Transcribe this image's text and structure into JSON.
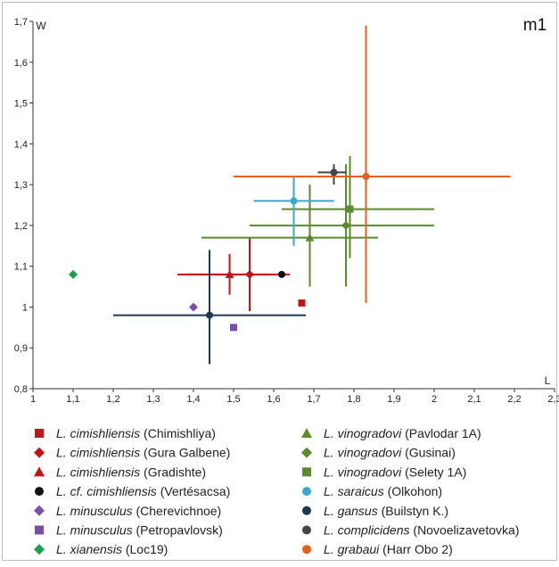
{
  "chart_data": {
    "type": "scatter",
    "panel_label": "m1",
    "xlabel": "L",
    "ylabel": "W",
    "xlim": [
      1,
      2.3
    ],
    "ylim": [
      0.8,
      1.7
    ],
    "x_ticks": [
      "1",
      "1,1",
      "1,2",
      "1,3",
      "1,4",
      "1,5",
      "1,6",
      "1,7",
      "1,8",
      "1,9",
      "2",
      "2,1",
      "2,2",
      "2,3"
    ],
    "x_tick_values": [
      1,
      1.1,
      1.2,
      1.3,
      1.4,
      1.5,
      1.6,
      1.7,
      1.8,
      1.9,
      2,
      2.1,
      2.2,
      2.3
    ],
    "y_ticks": [
      "0,8",
      "0,9",
      "1",
      "1,1",
      "1,2",
      "1,3",
      "1,4",
      "1,5",
      "1,6",
      "1,7"
    ],
    "y_tick_values": [
      0.8,
      0.9,
      1,
      1.1,
      1.2,
      1.3,
      1.4,
      1.5,
      1.6,
      1.7
    ],
    "grid": false,
    "legend_position": "bottom",
    "series": [
      {
        "genus": "L. ",
        "species": "cimishliensis",
        "locality": " (Chimishliya)",
        "marker": "square",
        "color": "#c0161a",
        "x": 1.67,
        "y": 1.01
      },
      {
        "genus": "L. ",
        "species": "cimishliensis",
        "locality": " (Gura Galbene)",
        "marker": "diamond",
        "color": "#c0161a",
        "x": 1.54,
        "y": 1.08,
        "xerr": [
          1.38,
          1.64
        ],
        "yerr": [
          0.99,
          1.17
        ]
      },
      {
        "genus": "L. ",
        "species": "cimishliensis",
        "locality": " (Gradishte)",
        "marker": "triangle",
        "color": "#c0161a",
        "x": 1.49,
        "y": 1.08,
        "xerr": [
          1.36,
          1.59
        ],
        "yerr": [
          1.03,
          1.13
        ]
      },
      {
        "genus": "L. cf. ",
        "species": "cimishliensis",
        "locality": "  (Vertésacsa)",
        "marker": "circle",
        "color": "#111111",
        "x": 1.62,
        "y": 1.08
      },
      {
        "genus": "L. ",
        "species": "minusculus",
        "locality": " (Cherevichnoe)",
        "marker": "diamond",
        "color": "#7a4fa8",
        "x": 1.4,
        "y": 1.0
      },
      {
        "genus": "L. ",
        "species": "minusculus",
        "locality": " (Petropavlovsk)",
        "marker": "square",
        "color": "#7a4fa8",
        "x": 1.5,
        "y": 0.95
      },
      {
        "genus": "L. ",
        "species": "xianensis",
        "locality": " (Loc19)",
        "marker": "diamond",
        "color": "#1e9e4a",
        "x": 1.1,
        "y": 1.08
      },
      {
        "genus": "L. ",
        "species": "vinogradovi",
        "locality": " (Pavlodar 1A)",
        "marker": "triangle",
        "color": "#5c8a2e",
        "x": 1.69,
        "y": 1.17,
        "xerr": [
          1.42,
          1.86
        ],
        "yerr": [
          1.05,
          1.3
        ]
      },
      {
        "genus": "L. ",
        "species": "vinogradovi",
        "locality": " (Gusinai)",
        "marker": "diamond",
        "color": "#5c8a2e",
        "x": 1.78,
        "y": 1.2,
        "xerr": [
          1.54,
          2.0
        ],
        "yerr": [
          1.05,
          1.35
        ]
      },
      {
        "genus": "L. ",
        "species": "vinogradovi",
        "locality": " (Selety 1A)",
        "marker": "square",
        "color": "#5c8a2e",
        "x": 1.79,
        "y": 1.24,
        "xerr": [
          1.62,
          2.0
        ],
        "yerr": [
          1.12,
          1.37
        ]
      },
      {
        "genus": "L. ",
        "species": "saraicus",
        "locality": " (Olkohon)",
        "marker": "circle",
        "color": "#3aa8c9",
        "x": 1.65,
        "y": 1.26,
        "xerr": [
          1.55,
          1.75
        ],
        "yerr": [
          1.15,
          1.32
        ]
      },
      {
        "genus": "L. ",
        "species": "gansus",
        "locality": " (Builstyn K.)",
        "marker": "circle",
        "color": "#1f3850",
        "x": 1.44,
        "y": 0.98,
        "xerr": [
          1.2,
          1.68
        ],
        "yerr": [
          0.86,
          1.14
        ]
      },
      {
        "genus": "L. ",
        "species": "complicidens",
        "locality": " (Novoelizavetovka)",
        "marker": "circle",
        "color": "#444444",
        "x": 1.75,
        "y": 1.33,
        "xerr": [
          1.71,
          1.78
        ],
        "yerr": [
          1.3,
          1.35
        ]
      },
      {
        "genus": "L. ",
        "species": "grabaui",
        "locality": " (Harr Obo 2)",
        "marker": "circle",
        "color": "#e4601e",
        "x": 1.83,
        "y": 1.32,
        "xerr": [
          1.5,
          2.19
        ],
        "yerr": [
          1.01,
          1.69
        ]
      }
    ]
  }
}
